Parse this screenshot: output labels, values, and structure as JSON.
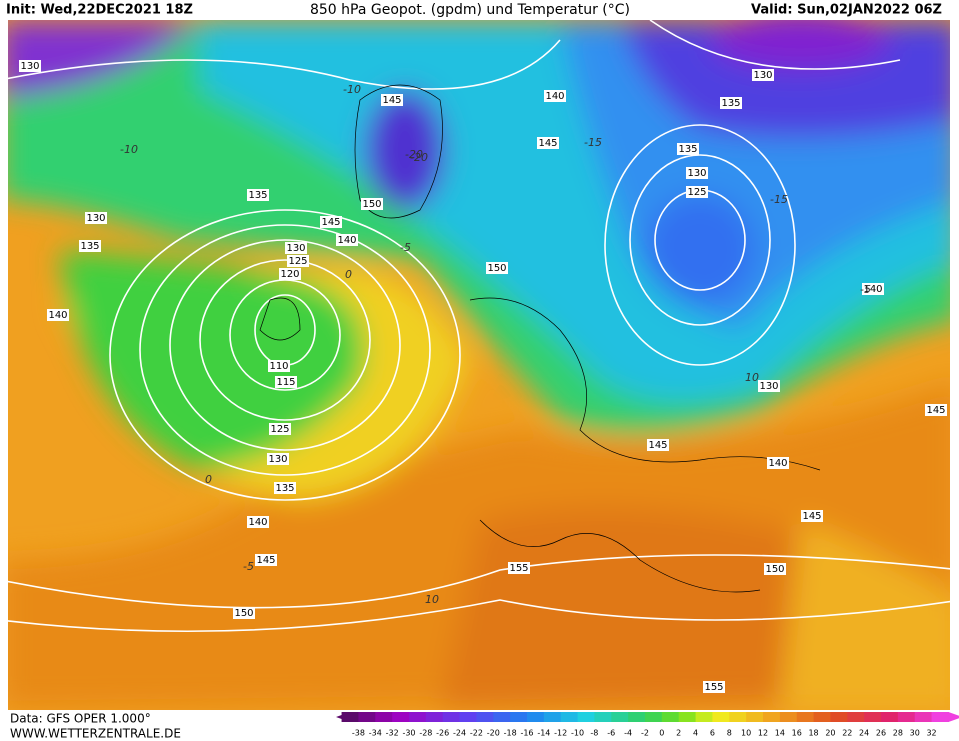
{
  "header": {
    "init": "Init: Wed,22DEC2021 18Z",
    "title": "850 hPa Geopot. (gpdm) und Temperatur (°C)",
    "valid": "Valid: Sun,02JAN2022 06Z"
  },
  "footer": {
    "source": "Data: GFS OPER 1.000°",
    "site": "WWW.WETTERZENTRALE.DE"
  },
  "colorbar": {
    "labels": [
      -38,
      -34,
      -32,
      -30,
      -28,
      -26,
      -24,
      -22,
      -20,
      -18,
      -16,
      -14,
      -12,
      -10,
      -8,
      -6,
      -4,
      -2,
      0,
      2,
      4,
      6,
      8,
      10,
      12,
      14,
      16,
      18,
      20,
      22,
      24,
      26,
      28,
      30,
      32
    ]
  },
  "geopotential_labels": [
    "130",
    "145",
    "140",
    "145",
    "130",
    "135",
    "135",
    "130",
    "125",
    "130",
    "135",
    "135",
    "145",
    "150",
    "140",
    "130",
    "125",
    "120",
    "140",
    "150",
    "140",
    "110",
    "115",
    "125",
    "130",
    "135",
    "140",
    "145",
    "150",
    "145",
    "130",
    "140",
    "145",
    "145",
    "155",
    "150",
    "155"
  ],
  "isotherm_labels": [
    "-10",
    "-15",
    "-20",
    "-5",
    "0",
    "-15",
    "-5",
    "10",
    "0",
    "-5",
    "10",
    "-20",
    "-10"
  ]
}
